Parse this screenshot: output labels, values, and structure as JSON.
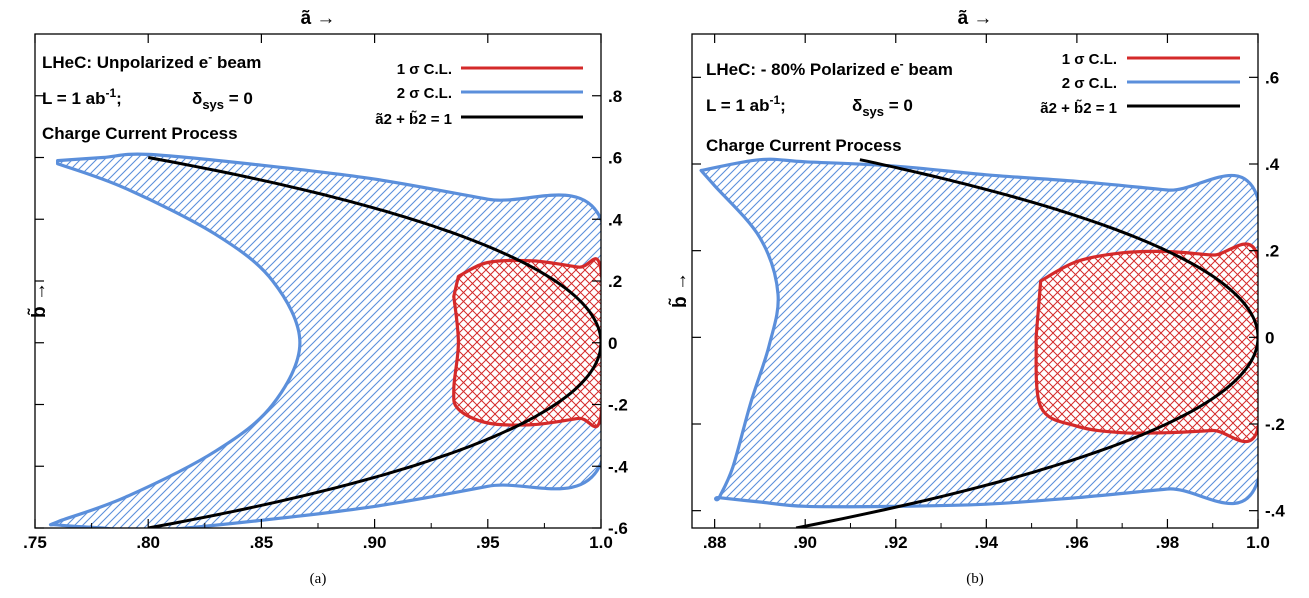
{
  "chart_data": [
    {
      "type": "area",
      "panel_label": "(a)",
      "xlabel": "ã →",
      "ylabel": "b̃ →",
      "xlim": [
        0.75,
        1.0
      ],
      "ylim": [
        -0.6,
        1.0
      ],
      "x_ticks": [
        ".75",
        ".80",
        ".85",
        ".90",
        ".95",
        "1.0"
      ],
      "y_ticks": [
        ".8",
        ".6",
        ".4",
        ".2",
        "0",
        "-.2",
        "-.4",
        "-.6"
      ],
      "annotations": [
        "LHeC: Unpolarized e",
        "L = 1 ab",
        "δsys = 0",
        "Charge Current Process"
      ],
      "legend": [
        "1 σ C.L.",
        "2 σ C.L.",
        "ã2 + b̃2 = 1"
      ],
      "series": [
        {
          "name": "2 σ C.L.",
          "color": "#5b8fdb",
          "hatch": "diagonal",
          "upper": [
            [
              0.76,
              0.59
            ],
            [
              0.78,
              0.6
            ],
            [
              0.8,
              0.61
            ],
            [
              0.85,
              0.575
            ],
            [
              0.9,
              0.53
            ],
            [
              0.95,
              0.465
            ],
            [
              1.0,
              0.4
            ]
          ],
          "lower": [
            [
              1.0,
              -0.39
            ],
            [
              0.95,
              -0.465
            ],
            [
              0.9,
              -0.53
            ],
            [
              0.85,
              -0.575
            ],
            [
              0.8,
              -0.61
            ],
            [
              0.78,
              -0.6
            ],
            [
              0.76,
              -0.59
            ]
          ],
          "left_profile": [
            [
              0.76,
              0.58
            ],
            [
              0.79,
              0.5
            ],
            [
              0.83,
              0.35
            ],
            [
              0.855,
              0.2
            ],
            [
              0.867,
              0.0
            ],
            [
              0.855,
              -0.2
            ],
            [
              0.83,
              -0.35
            ],
            [
              0.79,
              -0.5
            ],
            [
              0.76,
              -0.58
            ]
          ]
        },
        {
          "name": "1 σ C.L.",
          "color": "#d42a2a",
          "hatch": "cross",
          "top": [
            [
              0.937,
              0.215
            ],
            [
              0.95,
              0.26
            ],
            [
              0.97,
              0.265
            ],
            [
              0.99,
              0.245
            ],
            [
              1.0,
              0.235
            ]
          ],
          "bottom": [
            [
              1.0,
              -0.235
            ],
            [
              0.99,
              -0.245
            ],
            [
              0.97,
              -0.265
            ],
            [
              0.95,
              -0.26
            ],
            [
              0.937,
              -0.215
            ]
          ],
          "left_profile": [
            [
              0.937,
              0.215
            ],
            [
              0.935,
              0.15
            ],
            [
              0.937,
              0.0
            ],
            [
              0.935,
              -0.15
            ],
            [
              0.937,
              -0.215
            ]
          ]
        },
        {
          "name": "ã2 + b̃2 = 1",
          "color": "#000000",
          "relation": "x^2 + y^2 = 1",
          "ylim": [
            -0.6,
            0.6
          ]
        }
      ]
    },
    {
      "type": "area",
      "panel_label": "(b)",
      "xlabel": "ã →",
      "ylabel": "b̃ →",
      "xlim": [
        0.875,
        1.0
      ],
      "ylim": [
        -0.44,
        0.7
      ],
      "x_ticks": [
        ".88",
        ".90",
        ".92",
        ".94",
        ".96",
        ".98",
        "1.0"
      ],
      "y_ticks": [
        ".6",
        ".4",
        ".2",
        "0",
        "-.2",
        "-.4"
      ],
      "annotations": [
        "LHeC: - 80% Polarized e",
        "L = 1 ab",
        "δsys = 0",
        "Charge Current Process"
      ],
      "legend": [
        "1 σ C.L.",
        "2 σ C.L.",
        "ã2 + b̃2 = 1"
      ],
      "series": [
        {
          "name": "2 σ C.L.",
          "color": "#5b8fdb",
          "hatch": "diagonal",
          "upper": [
            [
              0.877,
              0.385
            ],
            [
              0.89,
              0.41
            ],
            [
              0.9,
              0.405
            ],
            [
              0.92,
              0.395
            ],
            [
              0.94,
              0.375
            ],
            [
              0.96,
              0.36
            ],
            [
              0.98,
              0.34
            ],
            [
              1.0,
              0.32
            ]
          ],
          "lower": [
            [
              1.0,
              -0.33
            ],
            [
              0.98,
              -0.35
            ],
            [
              0.96,
              -0.37
            ],
            [
              0.94,
              -0.385
            ],
            [
              0.92,
              -0.39
            ],
            [
              0.9,
              -0.39
            ],
            [
              0.89,
              -0.38
            ],
            [
              0.881,
              -0.37
            ]
          ],
          "left_profile": [
            [
              0.877,
              0.385
            ],
            [
              0.88,
              0.35
            ],
            [
              0.89,
              0.23
            ],
            [
              0.894,
              0.1
            ],
            [
              0.892,
              -0.02
            ],
            [
              0.888,
              -0.15
            ],
            [
              0.884,
              -0.3
            ],
            [
              0.881,
              -0.37
            ]
          ]
        },
        {
          "name": "1 σ C.L.",
          "color": "#d42a2a",
          "hatch": "cross",
          "top": [
            [
              0.952,
              0.13
            ],
            [
              0.96,
              0.175
            ],
            [
              0.97,
              0.195
            ],
            [
              0.98,
              0.198
            ],
            [
              0.99,
              0.19
            ],
            [
              1.0,
              0.185
            ]
          ],
          "bottom": [
            [
              1.0,
              -0.21
            ],
            [
              0.99,
              -0.215
            ],
            [
              0.98,
              -0.22
            ],
            [
              0.97,
              -0.22
            ],
            [
              0.96,
              -0.205
            ],
            [
              0.952,
              -0.16
            ]
          ],
          "left_profile": [
            [
              0.952,
              0.13
            ],
            [
              0.951,
              0.0
            ],
            [
              0.952,
              -0.16
            ]
          ]
        },
        {
          "name": "ã2 + b̃2 = 1",
          "color": "#000000",
          "relation": "x^2 + y^2 = 1",
          "ylim": [
            -0.44,
            0.41
          ]
        }
      ]
    }
  ]
}
